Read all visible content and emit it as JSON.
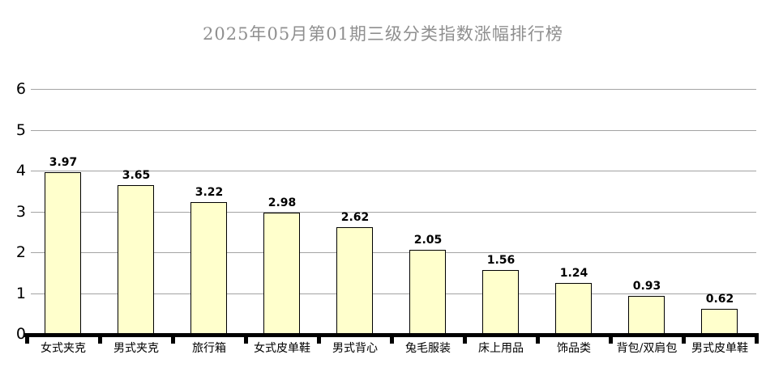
{
  "chart_data": {
    "type": "bar",
    "title": "2025年05月第01期三级分类指数涨幅排行榜",
    "categories": [
      "女式夹克",
      "男式夹克",
      "旅行箱",
      "女式皮单鞋",
      "男式背心",
      "兔毛服装",
      "床上用品",
      "饰品类",
      "背包/双肩包",
      "男式皮单鞋"
    ],
    "values": [
      3.97,
      3.65,
      3.22,
      2.98,
      2.62,
      2.05,
      1.56,
      1.24,
      0.93,
      0.62
    ],
    "value_labels": [
      "3.97",
      "3.65",
      "3.22",
      "2.98",
      "2.62",
      "2.05",
      "1.56",
      "1.24",
      "0.93",
      "0.62"
    ],
    "xlabel": "",
    "ylabel": "",
    "ylim": [
      0,
      6
    ],
    "yticks": [
      0,
      1,
      2,
      3,
      4,
      5,
      6
    ],
    "grid": "horizontal",
    "legend": "none",
    "colors": {
      "bar_fill": "#FFFFCC",
      "bar_border": "#000000",
      "gridline": "#A3A3A3",
      "axis": "#000000",
      "title_text": "#8F8F8F",
      "label_text": "#000000",
      "background": "#FFFFFF"
    }
  }
}
